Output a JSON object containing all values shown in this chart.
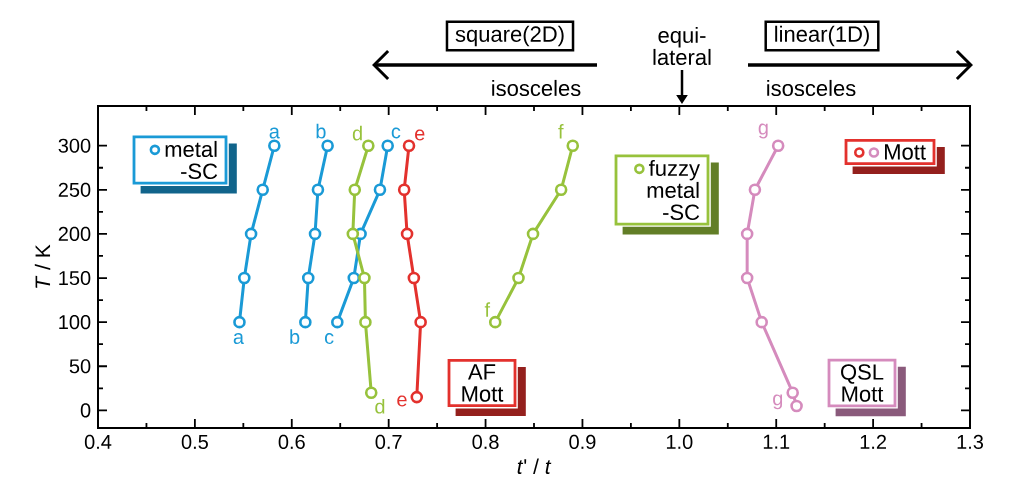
{
  "chart_data": {
    "type": "line",
    "xlabel": "*t*' / *t*",
    "ylabel": "*T* / K",
    "xlim": [
      0.4,
      1.3
    ],
    "xticks": [
      0.4,
      0.5,
      0.6,
      0.7,
      0.8,
      0.9,
      {
        "value": 1.0,
        "label": "1.0"
      },
      1.1,
      1.2,
      1.3
    ],
    "ylim": [
      -20,
      345
    ],
    "yticks": [
      0,
      50,
      100,
      150,
      200,
      250,
      300
    ],
    "marker": "circle",
    "line_style": "solid",
    "series": [
      {
        "name": "a",
        "color": "#1a9ad6",
        "x": [
          0.546,
          0.551,
          0.558,
          0.57,
          0.582
        ],
        "values": [
          100,
          150,
          200,
          250,
          300
        ]
      },
      {
        "name": "b",
        "color": "#1a9ad6",
        "x": [
          0.614,
          0.617,
          0.624,
          0.627,
          0.637
        ],
        "values": [
          100,
          150,
          200,
          250,
          300
        ]
      },
      {
        "name": "c",
        "color": "#1a9ad6",
        "x": [
          0.647,
          0.664,
          0.671,
          0.691,
          0.699
        ],
        "values": [
          100,
          150,
          200,
          250,
          300
        ]
      },
      {
        "name": "d",
        "color": "#97c23c",
        "x": [
          0.682,
          0.676,
          0.675,
          0.663,
          0.665,
          0.679
        ],
        "values": [
          20,
          100,
          150,
          200,
          250,
          300
        ]
      },
      {
        "name": "e",
        "color": "#e3312d",
        "x": [
          0.729,
          0.733,
          0.726,
          0.719,
          0.716,
          0.721
        ],
        "values": [
          15,
          100,
          150,
          200,
          250,
          300
        ]
      },
      {
        "name": "f",
        "color": "#97c23c",
        "x": [
          0.81,
          0.834,
          0.849,
          0.878,
          0.89
        ],
        "values": [
          100,
          150,
          200,
          250,
          300
        ]
      },
      {
        "name": "g",
        "color": "#d58bbd",
        "x": [
          1.121,
          1.117,
          1.085,
          1.07,
          1.07,
          1.078,
          1.102
        ],
        "values": [
          5,
          20,
          100,
          150,
          200,
          250,
          300
        ]
      }
    ],
    "annotations": [
      "square(2D)",
      "isosceles",
      "equi- lateral",
      "linear(1D)",
      "isosceles",
      "metal -SC",
      "fuzzy metal -SC",
      "Mott",
      "AF Mott",
      "QSL Mott"
    ]
  }
}
